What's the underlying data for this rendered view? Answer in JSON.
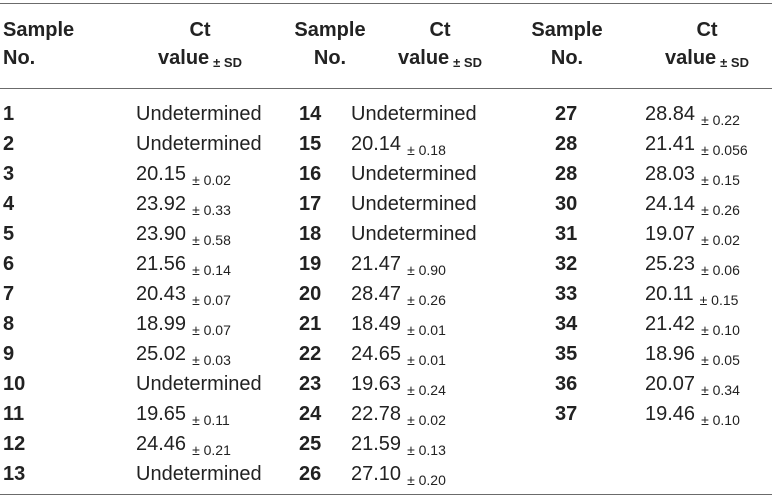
{
  "header": {
    "sample_line1": "Sample",
    "sample_line2": "No.",
    "ct_line1": "Ct",
    "ct_line2": "value",
    "sd_label": "± SD"
  },
  "columns": [
    [
      {
        "no": "1",
        "value": "Undetermined",
        "sd": ""
      },
      {
        "no": "2",
        "value": "Undetermined",
        "sd": ""
      },
      {
        "no": "3",
        "value": "20.15",
        "sd": "± 0.02"
      },
      {
        "no": "4",
        "value": "23.92",
        "sd": "± 0.33"
      },
      {
        "no": "5",
        "value": "23.90",
        "sd": "± 0.58"
      },
      {
        "no": "6",
        "value": "21.56",
        "sd": "± 0.14"
      },
      {
        "no": "7",
        "value": "20.43",
        "sd": "± 0.07"
      },
      {
        "no": "8",
        "value": "18.99",
        "sd": "± 0.07"
      },
      {
        "no": "9",
        "value": "25.02",
        "sd": "± 0.03"
      },
      {
        "no": "10",
        "value": "Undetermined",
        "sd": ""
      },
      {
        "no": "11",
        "value": "19.65",
        "sd": "± 0.11"
      },
      {
        "no": "12",
        "value": "24.46",
        "sd": "± 0.21"
      },
      {
        "no": "13",
        "value": "Undetermined",
        "sd": ""
      }
    ],
    [
      {
        "no": "14",
        "value": "Undetermined",
        "sd": ""
      },
      {
        "no": "15",
        "value": "20.14",
        "sd": "± 0.18"
      },
      {
        "no": "16",
        "value": "Undetermined",
        "sd": ""
      },
      {
        "no": "17",
        "value": "Undetermined",
        "sd": ""
      },
      {
        "no": "18",
        "value": "Undetermined",
        "sd": ""
      },
      {
        "no": "19",
        "value": "21.47",
        "sd": "± 0.90"
      },
      {
        "no": "20",
        "value": "28.47",
        "sd": "± 0.26"
      },
      {
        "no": "21",
        "value": "18.49",
        "sd": "± 0.01"
      },
      {
        "no": "22",
        "value": "24.65",
        "sd": "± 0.01"
      },
      {
        "no": "23",
        "value": "19.63",
        "sd": "± 0.24"
      },
      {
        "no": "24",
        "value": "22.78",
        "sd": "± 0.02"
      },
      {
        "no": "25",
        "value": "21.59",
        "sd": "± 0.13"
      },
      {
        "no": "26",
        "value": "27.10",
        "sd": "± 0.20"
      }
    ],
    [
      {
        "no": "27",
        "value": "28.84",
        "sd": "± 0.22"
      },
      {
        "no": "28",
        "value": "21.41",
        "sd": "± 0.056"
      },
      {
        "no": "28",
        "value": "28.03",
        "sd": "± 0.15"
      },
      {
        "no": "30",
        "value": "24.14",
        "sd": "± 0.26"
      },
      {
        "no": "31",
        "value": "19.07",
        "sd": "± 0.02"
      },
      {
        "no": "32",
        "value": "25.23",
        "sd": "± 0.06"
      },
      {
        "no": "33",
        "value": "20.11",
        "sd": "± 0.15"
      },
      {
        "no": "34",
        "value": "21.42",
        "sd": "± 0.10"
      },
      {
        "no": "35",
        "value": "18.96",
        "sd": "± 0.05"
      },
      {
        "no": "36",
        "value": "20.07",
        "sd": "± 0.34"
      },
      {
        "no": "37",
        "value": "19.46",
        "sd": "± 0.10"
      }
    ]
  ]
}
